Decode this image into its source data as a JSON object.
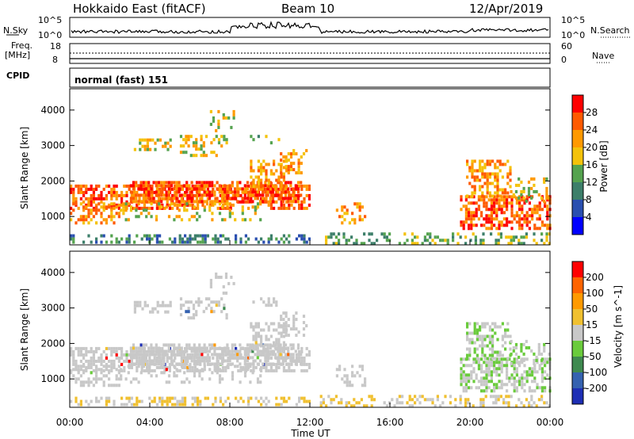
{
  "header": {
    "station": "Hokkaido East (fitACF)",
    "beam": "Beam 10",
    "date": "12/Apr/2019"
  },
  "strip": {
    "nsky_label": "N.Sky",
    "nsearch_label": "N.Search",
    "scale_top_left": "10^5",
    "scale_bottom_left": "10^0",
    "scale_top_right": "10^5",
    "scale_bottom_right": "10^0",
    "freq_label": "Freq.",
    "freq_unit": "[MHz]",
    "freq_top": "18",
    "freq_bottom": "8",
    "nave_label": "Nave",
    "nave_top": "60",
    "nave_bottom": "0",
    "cpid_label": "CPID",
    "cpid_value": "normal (fast) 151"
  },
  "colors": {
    "power": [
      "#0000ff",
      "#2a4fb0",
      "#3d7f6a",
      "#55a34f",
      "#f4c20a",
      "#ff9900",
      "#ff5a00",
      "#ff0000"
    ],
    "velocity": [
      "#1e2fb5",
      "#3562b0",
      "#3f8a50",
      "#6acb3c",
      "#c8c8c8",
      "#f0c030",
      "#ff9a00",
      "#ff6400",
      "#ff0000"
    ],
    "ground": "#c8c8c8"
  },
  "chart_data": [
    {
      "type": "heatmap",
      "name": "power",
      "ylabel": "Slant Range [km]",
      "yticks": [
        1000,
        2000,
        3000,
        4000
      ],
      "ylim": [
        200,
        4600
      ],
      "colorbar_title": "Power [dB]",
      "colorbar_ticks": [
        "4",
        "8",
        "12",
        "16",
        "20",
        "24",
        "28"
      ],
      "colorbar_range": [
        0,
        32
      ]
    },
    {
      "type": "heatmap",
      "name": "velocity",
      "ylabel": "Slant Range [km]",
      "yticks": [
        1000,
        2000,
        3000,
        4000
      ],
      "ylim": [
        200,
        4600
      ],
      "colorbar_title": "Velocity [m s^-1]",
      "colorbar_ticks": [
        "200",
        "100",
        "50",
        "15",
        "-15",
        "-50",
        "-100",
        "-200"
      ]
    }
  ],
  "xaxis": {
    "label": "Time UT",
    "ticks": [
      "00:00",
      "04:00",
      "08:00",
      "12:00",
      "16:00",
      "20:00",
      "00:00"
    ],
    "range_hours": [
      0,
      24
    ]
  }
}
